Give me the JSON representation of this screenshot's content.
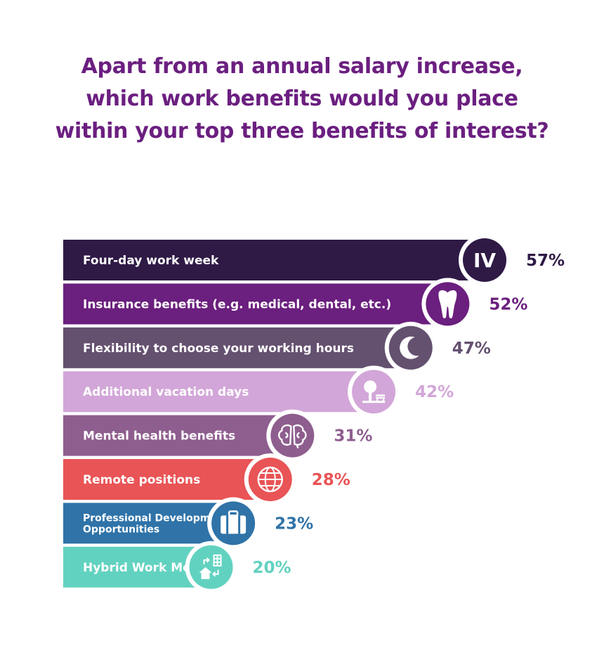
{
  "title_lines": [
    "Apart from an annual salary increase,",
    "which work benefits would you place",
    "within your top three benefits of interest?"
  ],
  "chart_data": {
    "type": "bar",
    "orientation": "horizontal",
    "categories": [
      "Four-day work week",
      "Insurance benefits (e.g. medical, dental, etc.)",
      "Flexibility to choose your working hours",
      "Additional vacation days",
      "Mental health benefits",
      "Remote positions",
      "Professional Development Opportunities",
      "Hybrid Work Model"
    ],
    "values": [
      57,
      52,
      47,
      42,
      31,
      28,
      23,
      20
    ],
    "value_labels": [
      "57%",
      "52%",
      "47%",
      "42%",
      "31%",
      "28%",
      "23%",
      "20%"
    ],
    "colors": [
      "#2f1a45",
      "#6b1f7e",
      "#64506f",
      "#d2a6d8",
      "#8e5e8e",
      "#e95456",
      "#2f73a8",
      "#62d2c0"
    ],
    "label_colors": [
      "#2f1a45",
      "#6b1f7e",
      "#64506f",
      "#d2a6d8",
      "#8e5e8e",
      "#e95456",
      "#2f73a8",
      "#62d2c0"
    ],
    "icons": [
      "roman-iv-icon",
      "tooth-icon",
      "crescent-moon-icon",
      "park-bench-tree-icon",
      "brain-icon",
      "globe-icon",
      "briefcase-icon",
      "hybrid-home-office-icon"
    ],
    "icon_text": "IV",
    "xlim": [
      0,
      57
    ]
  }
}
